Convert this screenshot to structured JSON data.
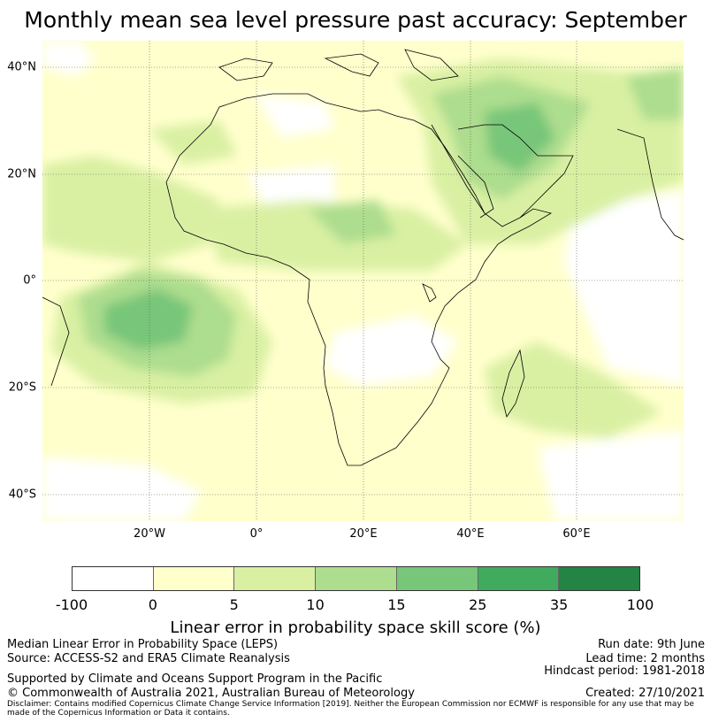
{
  "title": "Monthly mean sea level pressure past accuracy: September",
  "map": {
    "lat_labels": [
      "40°N",
      "20°N",
      "0°",
      "20°S",
      "40°S"
    ],
    "lon_labels": [
      "20°W",
      "0°",
      "20°E",
      "40°E",
      "60°E"
    ]
  },
  "colorbar": {
    "ticks": [
      "-100",
      "0",
      "5",
      "10",
      "15",
      "25",
      "35",
      "100"
    ],
    "colors": [
      "#ffffff",
      "#ffffcc",
      "#d9f0a3",
      "#addd8e",
      "#78c679",
      "#41ab5d",
      "#238443"
    ],
    "label": "Linear error in probability space skill score (%)"
  },
  "footer": {
    "left1": "Median Linear Error in Probability Space (LEPS)",
    "left2": "Source: ACCESS-S2 and ERA5 Climate Reanalysis",
    "left3": "Supported by Climate and Oceans Support Program in the Pacific",
    "left4": "© Commonwealth of Australia 2021, Australian Bureau of Meteorology",
    "right1": "Run date: 9th June",
    "right2": "Lead time: 2 months",
    "right3": "Hindcast period: 1981-2018",
    "right4": "Created: 27/10/2021",
    "disclaimer": "Disclaimer: Contains modified Copernicus Climate Change Service Information [2019]. Neither the European Commission nor ECMWF is responsible for any use that may be made of the Copernicus Information or Data it contains."
  }
}
